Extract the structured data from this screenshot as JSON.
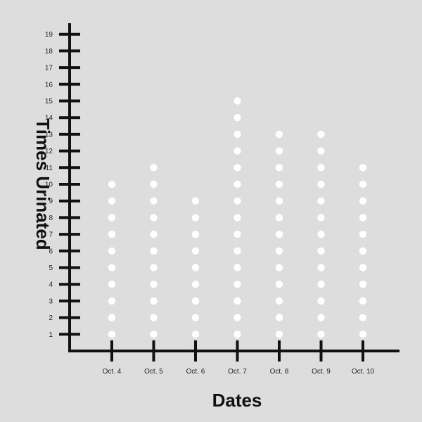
{
  "chart_data": {
    "type": "scatter",
    "style": "dot-plot",
    "title": "",
    "xlabel": "Dates",
    "ylabel": "Times Urinated",
    "categories": [
      "Oct. 4",
      "Oct. 5",
      "Oct. 6",
      "Oct. 7",
      "Oct. 8",
      "Oct. 9",
      "Oct. 10"
    ],
    "values": [
      10,
      11,
      9,
      15,
      13,
      13,
      11
    ],
    "ylim": [
      0,
      19
    ],
    "yticks": [
      1,
      2,
      3,
      4,
      5,
      6,
      7,
      8,
      9,
      10,
      11,
      12,
      13,
      14,
      15,
      16,
      17,
      18,
      19
    ],
    "grid": false,
    "legend": "none",
    "colors": {
      "background": "#dddddd",
      "axis": "#111111",
      "dot": "#ffffff"
    }
  }
}
